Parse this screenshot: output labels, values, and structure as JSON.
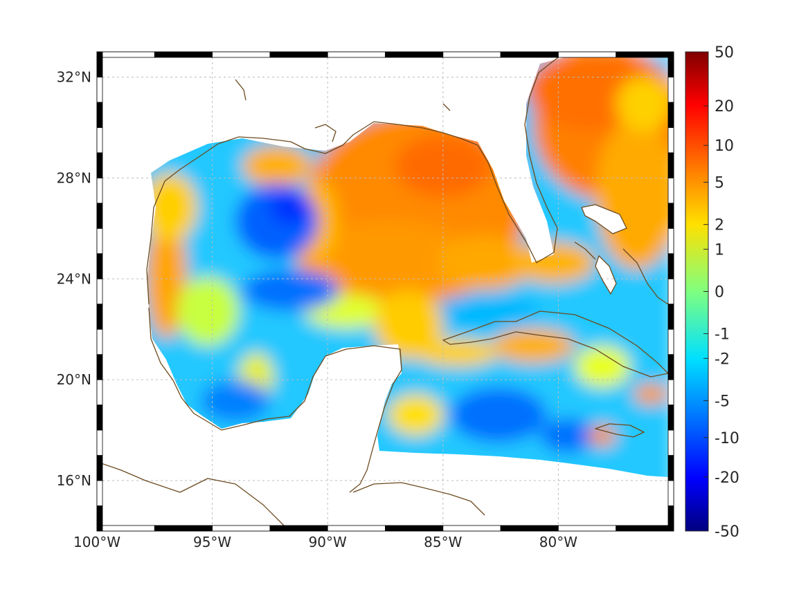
{
  "map": {
    "projection": "equirectangular",
    "lon_range": [
      -100,
      -75
    ],
    "lat_range": [
      14,
      33
    ],
    "grid": true,
    "frame_style": "alternating-black-white",
    "colors": {
      "land": "#ffffff",
      "coastline": "#6b4a1e",
      "grid": "#bdbdbd",
      "frame_dark": "#000000",
      "frame_light": "#ffffff"
    },
    "x_ticks": [
      "100°W",
      "95°W",
      "90°W",
      "85°W",
      "80°W"
    ],
    "y_ticks": [
      "16°N",
      "20°N",
      "24°N",
      "28°N",
      "32°N"
    ],
    "x_tick_values": [
      -100,
      -95,
      -90,
      -85,
      -80
    ],
    "y_tick_values": [
      16,
      20,
      24,
      28,
      32
    ]
  },
  "colorbar": {
    "colormap": "jet",
    "scale": "symmetric-log",
    "labels": [
      "50",
      "20",
      "10",
      "5",
      "2",
      "1",
      "0",
      "-1",
      "-2",
      "-5",
      "-10",
      "-20",
      "-50"
    ],
    "values": [
      50,
      20,
      10,
      5,
      2,
      1,
      0,
      -1,
      -2,
      -5,
      -10,
      -20,
      -50
    ]
  }
}
